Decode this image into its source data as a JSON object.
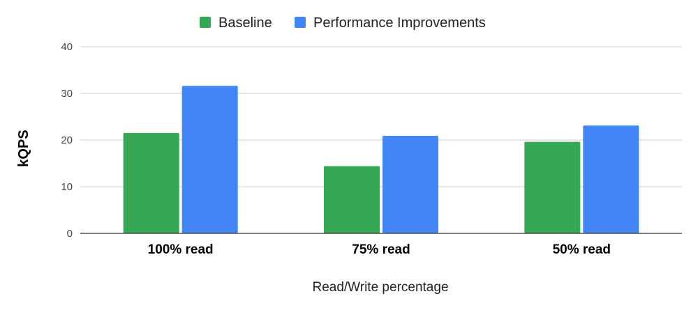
{
  "chart_data": {
    "type": "bar",
    "title": "",
    "xlabel": "Read/Write percentage",
    "ylabel": "kQPS",
    "categories": [
      "100% read",
      "75% read",
      "50% read"
    ],
    "series": [
      {
        "name": "Baseline",
        "color": "#34a853",
        "values": [
          21.5,
          14.4,
          19.6
        ]
      },
      {
        "name": "Performance Improvements",
        "color": "#4285f4",
        "values": [
          31.6,
          20.9,
          23.1
        ]
      }
    ],
    "ylim": [
      0,
      40
    ],
    "yticks": [
      "0",
      "10",
      "20",
      "30",
      "40"
    ],
    "grid": true,
    "legend_position": "top"
  }
}
